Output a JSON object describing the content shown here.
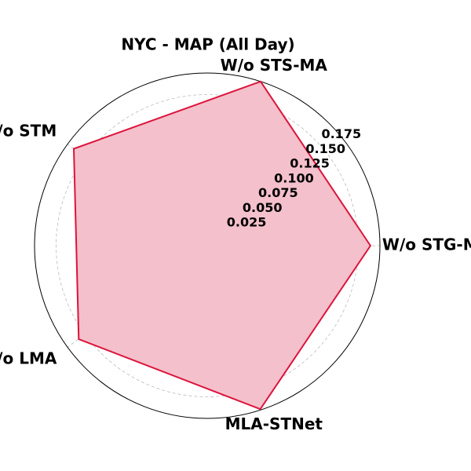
{
  "chart_data": {
    "type": "radar",
    "title": "NYC - MAP (All Day)",
    "categories": [
      "W/o STG-MA",
      "W/o STS-MA",
      "W/o STM",
      "W/o LMA",
      "MLA-STNet"
    ],
    "series": [
      {
        "color": "#dc143c",
        "fill": "#f4c0cc",
        "values": [
          0.189,
          0.2,
          0.191,
          0.184,
          0.199
        ]
      }
    ],
    "rlim": [
      0,
      0.2
    ],
    "rticks": [
      {
        "value": 0.025,
        "label": "0.025"
      },
      {
        "value": 0.05,
        "label": "0.050"
      },
      {
        "value": 0.075,
        "label": "0.075"
      },
      {
        "value": 0.1,
        "label": "0.100"
      },
      {
        "value": 0.125,
        "label": "0.125"
      },
      {
        "value": 0.15,
        "label": "0.150"
      },
      {
        "value": 0.175,
        "label": "0.175"
      }
    ],
    "grid": true
  }
}
